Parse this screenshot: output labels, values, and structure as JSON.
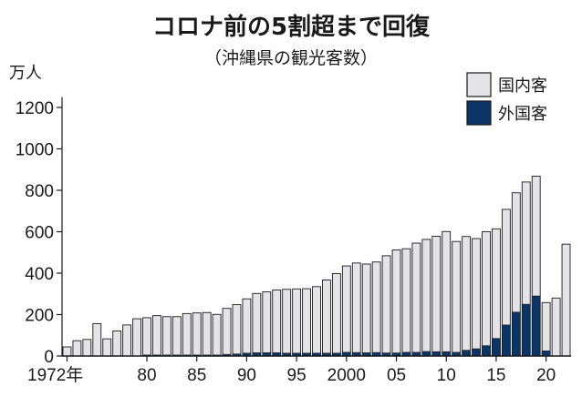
{
  "chart_data": {
    "type": "bar",
    "stacked": true,
    "title": "コロナ前の5割超まで回復",
    "subtitle": "（沖縄県の観光客数）",
    "unit_label": "万人",
    "first_x_label": "1972年",
    "x_tick_labels": [
      "80",
      "85",
      "90",
      "95",
      "2000",
      "05",
      "10",
      "15",
      "20"
    ],
    "y_ticks": [
      0,
      200,
      400,
      600,
      800,
      1000,
      1200
    ],
    "ylim": [
      0,
      1250
    ],
    "grid": false,
    "legend_position": "top-right",
    "categories": [
      1972,
      1973,
      1974,
      1975,
      1976,
      1977,
      1978,
      1979,
      1980,
      1981,
      1982,
      1983,
      1984,
      1985,
      1986,
      1987,
      1988,
      1989,
      1990,
      1991,
      1992,
      1993,
      1994,
      1995,
      1996,
      1997,
      1998,
      1999,
      2000,
      2001,
      2002,
      2003,
      2004,
      2005,
      2006,
      2007,
      2008,
      2009,
      2010,
      2011,
      2012,
      2013,
      2014,
      2015,
      2016,
      2017,
      2018,
      2019,
      2020,
      2021,
      2022
    ],
    "series": [
      {
        "name": "国内客",
        "color": "#e4e4e8",
        "values": [
          44,
          74,
          80,
          156,
          83,
          121,
          150,
          180,
          180,
          190,
          185,
          185,
          200,
          203,
          205,
          196,
          222,
          238,
          262,
          286,
          294,
          303,
          308,
          310,
          311,
          321,
          353,
          384,
          417,
          432,
          428,
          437,
          469,
          497,
          500,
          527,
          541,
          557,
          580,
          535,
          549,
          532,
          550,
          529,
          558,
          576,
          590,
          578,
          233,
          280,
          540
        ]
      },
      {
        "name": "外国客",
        "color": "#0b3566",
        "values": [
          0,
          0,
          0,
          0,
          0,
          0,
          0,
          0,
          5,
          5,
          5,
          5,
          5,
          5,
          5,
          5,
          8,
          10,
          14,
          16,
          16,
          16,
          14,
          14,
          14,
          14,
          14,
          14,
          18,
          17,
          16,
          17,
          15,
          15,
          18,
          18,
          22,
          21,
          21,
          18,
          28,
          35,
          50,
          85,
          150,
          212,
          250,
          290,
          25,
          0,
          0
        ]
      }
    ]
  }
}
